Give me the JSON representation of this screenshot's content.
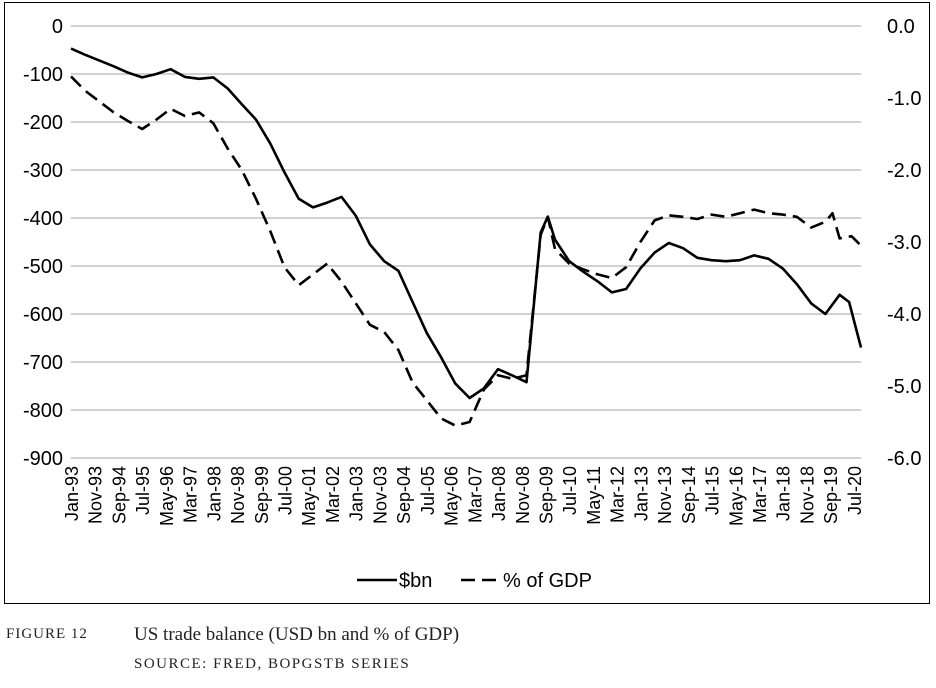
{
  "caption": {
    "figure_number": "FIGURE 12",
    "title": "US trade balance (USD bn and % of GDP)",
    "source": "SOURCE: FRED, BOPGSTB SERIES"
  },
  "chart_data": {
    "type": "line",
    "title": "",
    "xlabel": "",
    "ylabel_left": "",
    "ylabel_right": "",
    "ylim_left": [
      -900,
      0
    ],
    "ylim_right": [
      -6.0,
      0.0
    ],
    "yticks_left": [
      "0",
      "-100",
      "-200",
      "-300",
      "-400",
      "-500",
      "-600",
      "-700",
      "-800",
      "-900"
    ],
    "yticks_right": [
      "0.0",
      "-1.0",
      "-2.0",
      "-3.0",
      "-4.0",
      "-5.0",
      "-6.0"
    ],
    "grid": "horizontal",
    "legend_position": "bottom",
    "x_tick_labels": [
      "Jan-93",
      "Nov-93",
      "Sep-94",
      "Jul-95",
      "May-96",
      "Mar-97",
      "Jan-98",
      "Nov-98",
      "Sep-99",
      "Jul-00",
      "May-01",
      "Mar-02",
      "Jan-03",
      "Nov-03",
      "Sep-04",
      "Jul-05",
      "May-06",
      "Mar-07",
      "Jan-08",
      "Nov-08",
      "Sep-09",
      "Jul-10",
      "May-11",
      "Mar-12",
      "Jan-13",
      "Nov-13",
      "Sep-14",
      "Jul-15",
      "May-16",
      "Mar-17",
      "Jan-18",
      "Nov-18",
      "Sep-19",
      "Jul-20"
    ],
    "series": [
      {
        "name": "$bn",
        "axis": "left",
        "style": "solid",
        "color": "#000000",
        "points": [
          [
            "1993-01",
            -47
          ],
          [
            "1993-07",
            -60
          ],
          [
            "1994-01",
            -72
          ],
          [
            "1994-07",
            -84
          ],
          [
            "1995-01",
            -97
          ],
          [
            "1995-07",
            -107
          ],
          [
            "1996-01",
            -100
          ],
          [
            "1996-07",
            -90
          ],
          [
            "1997-01",
            -106
          ],
          [
            "1997-07",
            -110
          ],
          [
            "1998-01",
            -107
          ],
          [
            "1998-07",
            -130
          ],
          [
            "1999-01",
            -163
          ],
          [
            "1999-07",
            -195
          ],
          [
            "2000-01",
            -245
          ],
          [
            "2000-07",
            -305
          ],
          [
            "2001-01",
            -360
          ],
          [
            "2001-07",
            -378
          ],
          [
            "2002-01",
            -368
          ],
          [
            "2002-07",
            -356
          ],
          [
            "2003-01",
            -395
          ],
          [
            "2003-07",
            -455
          ],
          [
            "2004-01",
            -490
          ],
          [
            "2004-07",
            -510
          ],
          [
            "2005-01",
            -575
          ],
          [
            "2005-07",
            -640
          ],
          [
            "2006-01",
            -690
          ],
          [
            "2006-07",
            -745
          ],
          [
            "2007-01",
            -775
          ],
          [
            "2007-07",
            -755
          ],
          [
            "2008-01",
            -715
          ],
          [
            "2008-07",
            -728
          ],
          [
            "2009-01",
            -742
          ],
          [
            "2009-07",
            -430
          ],
          [
            "2009-10",
            -397
          ],
          [
            "2010-01",
            -445
          ],
          [
            "2010-07",
            -490
          ],
          [
            "2011-01",
            -512
          ],
          [
            "2011-07",
            -532
          ],
          [
            "2012-01",
            -555
          ],
          [
            "2012-07",
            -548
          ],
          [
            "2013-01",
            -505
          ],
          [
            "2013-07",
            -472
          ],
          [
            "2014-01",
            -452
          ],
          [
            "2014-07",
            -463
          ],
          [
            "2015-01",
            -483
          ],
          [
            "2015-07",
            -488
          ],
          [
            "2016-01",
            -490
          ],
          [
            "2016-07",
            -488
          ],
          [
            "2017-01",
            -478
          ],
          [
            "2017-07",
            -485
          ],
          [
            "2018-01",
            -505
          ],
          [
            "2018-07",
            -538
          ],
          [
            "2019-01",
            -578
          ],
          [
            "2019-07",
            -600
          ],
          [
            "2020-01",
            -560
          ],
          [
            "2020-05",
            -575
          ],
          [
            "2020-10",
            -670
          ]
        ]
      },
      {
        "name": "% of GDP",
        "axis": "right",
        "style": "dashed",
        "color": "#000000",
        "points": [
          [
            "1993-01",
            -0.7
          ],
          [
            "1993-07",
            -0.9
          ],
          [
            "1994-01",
            -1.05
          ],
          [
            "1994-07",
            -1.2
          ],
          [
            "1995-01",
            -1.32
          ],
          [
            "1995-07",
            -1.43
          ],
          [
            "1996-01",
            -1.3
          ],
          [
            "1996-07",
            -1.15
          ],
          [
            "1997-01",
            -1.25
          ],
          [
            "1997-07",
            -1.2
          ],
          [
            "1998-01",
            -1.35
          ],
          [
            "1998-07",
            -1.7
          ],
          [
            "1999-01",
            -2.0
          ],
          [
            "1999-07",
            -2.4
          ],
          [
            "2000-01",
            -2.85
          ],
          [
            "2000-07",
            -3.35
          ],
          [
            "2001-01",
            -3.6
          ],
          [
            "2001-07",
            -3.45
          ],
          [
            "2002-01",
            -3.3
          ],
          [
            "2002-07",
            -3.55
          ],
          [
            "2003-01",
            -3.85
          ],
          [
            "2003-07",
            -4.15
          ],
          [
            "2004-01",
            -4.25
          ],
          [
            "2004-07",
            -4.5
          ],
          [
            "2005-01",
            -4.95
          ],
          [
            "2005-07",
            -5.2
          ],
          [
            "2006-01",
            -5.45
          ],
          [
            "2006-07",
            -5.55
          ],
          [
            "2007-01",
            -5.5
          ],
          [
            "2007-07",
            -5.05
          ],
          [
            "2008-01",
            -4.85
          ],
          [
            "2008-07",
            -4.9
          ],
          [
            "2009-01",
            -4.85
          ],
          [
            "2009-07",
            -2.9
          ],
          [
            "2009-10",
            -2.65
          ],
          [
            "2010-01",
            -3.1
          ],
          [
            "2010-07",
            -3.3
          ],
          [
            "2011-01",
            -3.38
          ],
          [
            "2011-07",
            -3.45
          ],
          [
            "2012-01",
            -3.5
          ],
          [
            "2012-07",
            -3.35
          ],
          [
            "2013-01",
            -3.0
          ],
          [
            "2013-07",
            -2.7
          ],
          [
            "2014-01",
            -2.63
          ],
          [
            "2014-07",
            -2.65
          ],
          [
            "2015-01",
            -2.68
          ],
          [
            "2015-07",
            -2.62
          ],
          [
            "2016-01",
            -2.65
          ],
          [
            "2016-07",
            -2.6
          ],
          [
            "2017-01",
            -2.55
          ],
          [
            "2017-07",
            -2.6
          ],
          [
            "2018-01",
            -2.62
          ],
          [
            "2018-07",
            -2.65
          ],
          [
            "2019-01",
            -2.8
          ],
          [
            "2019-07",
            -2.72
          ],
          [
            "2019-10",
            -2.6
          ],
          [
            "2020-01",
            -2.95
          ],
          [
            "2020-06",
            -2.92
          ],
          [
            "2020-10",
            -3.05
          ]
        ]
      }
    ]
  }
}
